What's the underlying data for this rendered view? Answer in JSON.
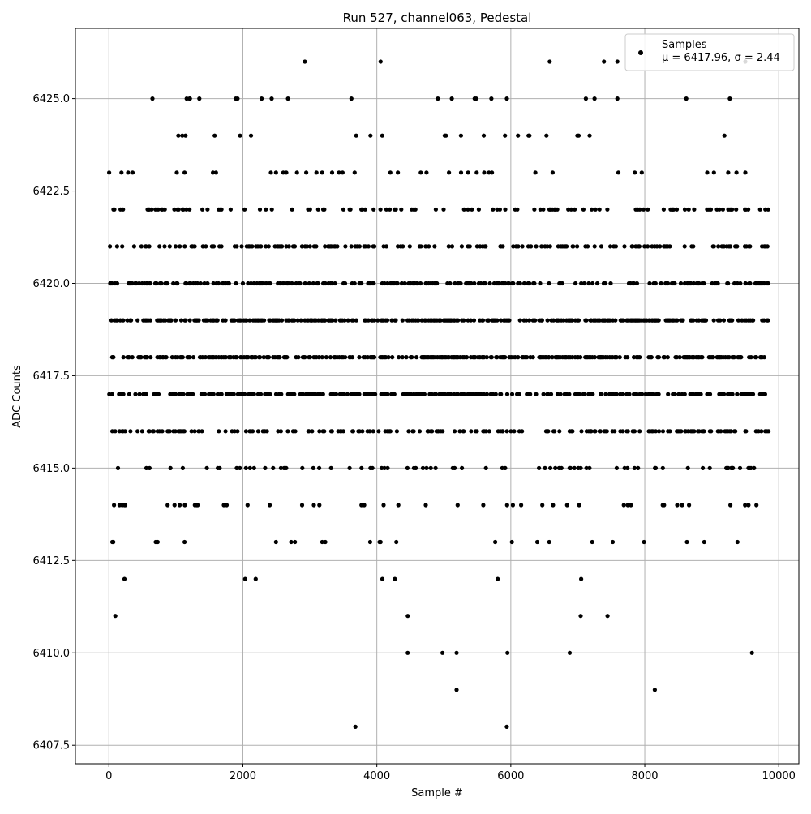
{
  "chart_data": {
    "type": "scatter",
    "title": "Run 527, channel063, Pedestal",
    "xlabel": "Sample #",
    "ylabel": "ADC Counts",
    "xlim": [
      -500,
      10300
    ],
    "ylim": [
      6407.0,
      6426.9
    ],
    "grid": true,
    "legend_position": "top-right",
    "colors": {
      "points": "#000000",
      "grid": "#b0b0b0",
      "background": "#ffffff"
    },
    "x_ticks": [
      0,
      2000,
      4000,
      6000,
      8000,
      10000
    ],
    "x_tick_labels": [
      "0",
      "2000",
      "4000",
      "6000",
      "8000",
      "10000"
    ],
    "y_ticks": [
      6407.5,
      6410.0,
      6412.5,
      6415.0,
      6417.5,
      6420.0,
      6422.5,
      6425.0
    ],
    "y_tick_labels": [
      "6407.5",
      "6410.0",
      "6412.5",
      "6415.0",
      "6417.5",
      "6420.0",
      "6422.5",
      "6425.0"
    ],
    "series": [
      {
        "name": "Samples",
        "stats_label": "μ = 6417.96, σ = 2.44",
        "x_range": [
          0,
          9850
        ],
        "level_density": {
          "6408": 0.0002,
          "6409": 0.0004,
          "6410": 0.001,
          "6411": 0.004,
          "6412": 0.012,
          "6413": 0.03,
          "6414": 0.06,
          "6415": 0.12,
          "6416": 0.25,
          "6417": 0.38,
          "6418": 0.45,
          "6419": 0.42,
          "6420": 0.35,
          "6421": 0.25,
          "6422": 0.15,
          "6423": 0.07,
          "6424": 0.025,
          "6425": 0.01,
          "6426": 0.002
        },
        "notable_points": [
          {
            "x": 5940,
            "y": 6408
          },
          {
            "x": 5190,
            "y": 6409
          },
          {
            "x": 8150,
            "y": 6409
          },
          {
            "x": 4460,
            "y": 6410
          },
          {
            "x": 4980,
            "y": 6410
          },
          {
            "x": 5190,
            "y": 6410
          },
          {
            "x": 5950,
            "y": 6410
          },
          {
            "x": 6880,
            "y": 6410
          },
          {
            "x": 9600,
            "y": 6410
          },
          {
            "x": 6580,
            "y": 6426
          },
          {
            "x": 7390,
            "y": 6426
          },
          {
            "x": 7590,
            "y": 6426
          },
          {
            "x": 650,
            "y": 6425
          },
          {
            "x": 1210,
            "y": 6425
          },
          {
            "x": 1350,
            "y": 6425
          },
          {
            "x": 1920,
            "y": 6425
          },
          {
            "x": 2280,
            "y": 6425
          },
          {
            "x": 2430,
            "y": 6425
          },
          {
            "x": 3620,
            "y": 6425
          },
          {
            "x": 5460,
            "y": 6425
          },
          {
            "x": 5710,
            "y": 6425
          },
          {
            "x": 7120,
            "y": 6425
          },
          {
            "x": 7250,
            "y": 6425
          },
          {
            "x": 7590,
            "y": 6425
          },
          {
            "x": 8620,
            "y": 6425
          },
          {
            "x": 9270,
            "y": 6425
          }
        ]
      }
    ]
  }
}
